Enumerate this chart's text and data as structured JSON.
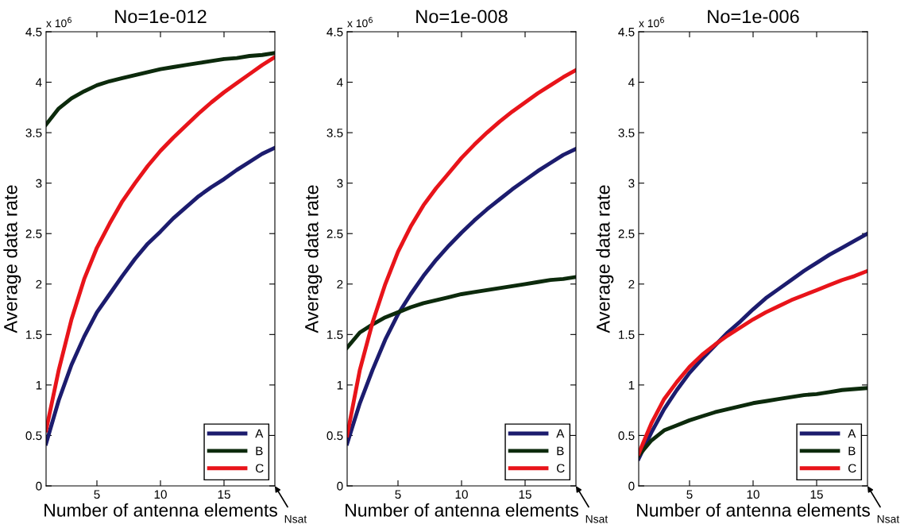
{
  "chart_data": [
    {
      "type": "line",
      "title": "No=1e-012",
      "xlabel": "Number of antenna elements",
      "ylabel": "Average data rate",
      "x": [
        1,
        2,
        3,
        4,
        5,
        6,
        7,
        8,
        9,
        10,
        11,
        12,
        13,
        14,
        15,
        16,
        17,
        18,
        19
      ],
      "xlim": [
        1,
        19
      ],
      "xticks": [
        5,
        10,
        15
      ],
      "ylim": [
        0,
        4.5
      ],
      "yticks": [
        0,
        0.5,
        1,
        1.5,
        2,
        2.5,
        3,
        3.5,
        4,
        4.5
      ],
      "legend": "bottom right",
      "grid": false,
      "annotations": [
        "x 10$^{6}$",
        "Nsat"
      ],
      "series": [
        {
          "name": "A",
          "color": "#1c1c6e",
          "values": [
            0.42,
            0.85,
            1.2,
            1.48,
            1.72,
            1.9,
            2.08,
            2.25,
            2.4,
            2.52,
            2.65,
            2.76,
            2.87,
            2.96,
            3.04,
            3.13,
            3.21,
            3.29,
            3.35
          ]
        },
        {
          "name": "B",
          "color": "#0c2a0c",
          "values": [
            3.58,
            3.74,
            3.84,
            3.91,
            3.97,
            4.01,
            4.04,
            4.07,
            4.1,
            4.13,
            4.15,
            4.17,
            4.19,
            4.21,
            4.23,
            4.24,
            4.26,
            4.27,
            4.29
          ]
        },
        {
          "name": "C",
          "color": "#e8141a",
          "values": [
            0.55,
            1.15,
            1.65,
            2.05,
            2.36,
            2.6,
            2.82,
            3.0,
            3.17,
            3.32,
            3.45,
            3.57,
            3.69,
            3.8,
            3.9,
            3.99,
            4.08,
            4.17,
            4.25
          ]
        }
      ]
    },
    {
      "type": "line",
      "title": "No=1e-008",
      "xlabel": "Number of antenna elements",
      "ylabel": "Average data rate",
      "x": [
        1,
        2,
        3,
        4,
        5,
        6,
        7,
        8,
        9,
        10,
        11,
        12,
        13,
        14,
        15,
        16,
        17,
        18,
        19
      ],
      "xlim": [
        1,
        19
      ],
      "xticks": [
        5,
        10,
        15
      ],
      "ylim": [
        0,
        4.5
      ],
      "yticks": [
        0,
        0.5,
        1,
        1.5,
        2,
        2.5,
        3,
        3.5,
        4,
        4.5
      ],
      "legend": "bottom right",
      "grid": false,
      "annotations": [
        "x 10$^{6}$",
        "Nsat"
      ],
      "series": [
        {
          "name": "A",
          "color": "#1c1c6e",
          "values": [
            0.42,
            0.82,
            1.15,
            1.45,
            1.7,
            1.9,
            2.08,
            2.24,
            2.38,
            2.51,
            2.63,
            2.74,
            2.84,
            2.94,
            3.03,
            3.12,
            3.2,
            3.28,
            3.34
          ]
        },
        {
          "name": "B",
          "color": "#0c2a0c",
          "values": [
            1.37,
            1.52,
            1.6,
            1.67,
            1.72,
            1.77,
            1.81,
            1.84,
            1.87,
            1.9,
            1.92,
            1.94,
            1.96,
            1.98,
            2.0,
            2.02,
            2.04,
            2.05,
            2.07
          ]
        },
        {
          "name": "C",
          "color": "#e8141a",
          "values": [
            0.5,
            1.15,
            1.62,
            2.0,
            2.32,
            2.57,
            2.78,
            2.95,
            3.1,
            3.25,
            3.38,
            3.5,
            3.61,
            3.71,
            3.8,
            3.89,
            3.97,
            4.05,
            4.12
          ]
        }
      ]
    },
    {
      "type": "line",
      "title": "No=1e-006",
      "xlabel": "Number of antenna elements",
      "ylabel": "Average data rate",
      "x": [
        1,
        2,
        3,
        4,
        5,
        6,
        7,
        8,
        9,
        10,
        11,
        12,
        13,
        14,
        15,
        16,
        17,
        18,
        19
      ],
      "xlim": [
        1,
        19
      ],
      "xticks": [
        5,
        10,
        15
      ],
      "ylim": [
        0,
        4.5
      ],
      "yticks": [
        0,
        0.5,
        1,
        1.5,
        2,
        2.5,
        3,
        3.5,
        4,
        4.5
      ],
      "legend": "bottom right",
      "grid": false,
      "annotations": [
        "x 10$^{6}$",
        "Nsat"
      ],
      "series": [
        {
          "name": "A",
          "color": "#1c1c6e",
          "values": [
            0.27,
            0.53,
            0.76,
            0.95,
            1.12,
            1.26,
            1.39,
            1.52,
            1.63,
            1.75,
            1.86,
            1.95,
            2.04,
            2.13,
            2.21,
            2.29,
            2.36,
            2.43,
            2.5
          ]
        },
        {
          "name": "B",
          "color": "#0c2a0c",
          "values": [
            0.3,
            0.45,
            0.55,
            0.6,
            0.65,
            0.69,
            0.73,
            0.76,
            0.79,
            0.82,
            0.84,
            0.86,
            0.88,
            0.9,
            0.91,
            0.93,
            0.95,
            0.96,
            0.97
          ]
        },
        {
          "name": "C",
          "color": "#e8141a",
          "values": [
            0.32,
            0.62,
            0.86,
            1.03,
            1.18,
            1.3,
            1.4,
            1.49,
            1.57,
            1.65,
            1.72,
            1.78,
            1.84,
            1.89,
            1.94,
            1.99,
            2.04,
            2.08,
            2.13
          ]
        }
      ]
    }
  ]
}
